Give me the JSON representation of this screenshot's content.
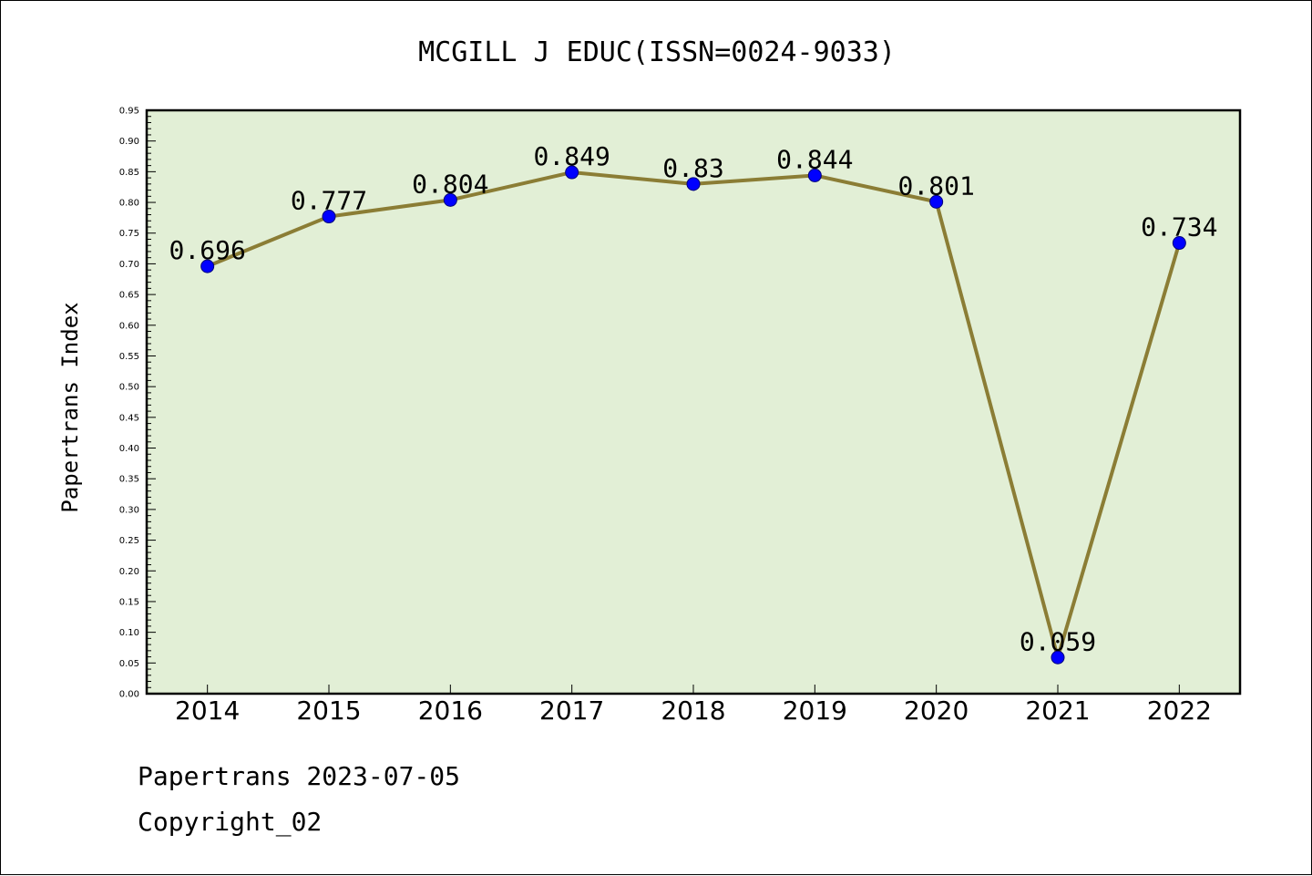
{
  "chart_data": {
    "type": "line",
    "title": "MCGILL J EDUC(ISSN=0024-9033)",
    "xlabel": "",
    "ylabel": "Papertrans Index",
    "categories": [
      "2014",
      "2015",
      "2016",
      "2017",
      "2018",
      "2019",
      "2020",
      "2021",
      "2022"
    ],
    "series": [
      {
        "values": [
          0.696,
          0.777,
          0.804,
          0.849,
          0.83,
          0.844,
          0.801,
          0.059,
          0.734
        ],
        "labels": [
          "0.696",
          "0.777",
          "0.804",
          "0.849",
          "0.83",
          "0.844",
          "0.801",
          "0.059",
          "0.734"
        ],
        "line_color": "#8b7d35",
        "marker_color": "#0000ff"
      }
    ],
    "ylim": [
      0,
      0.95
    ],
    "yticks": [
      "0.00",
      "0.05",
      "0.10",
      "0.15",
      "0.20",
      "0.25",
      "0.30",
      "0.35",
      "0.40",
      "0.45",
      "0.50",
      "0.55",
      "0.60",
      "0.65",
      "0.70",
      "0.75",
      "0.80",
      "0.85",
      "0.90",
      "0.95"
    ],
    "plot_background": "#e2efd6",
    "grid": false,
    "legend": "none"
  },
  "footer": {
    "line1": "Papertrans 2023-07-05",
    "line2": "Copyright_02"
  }
}
